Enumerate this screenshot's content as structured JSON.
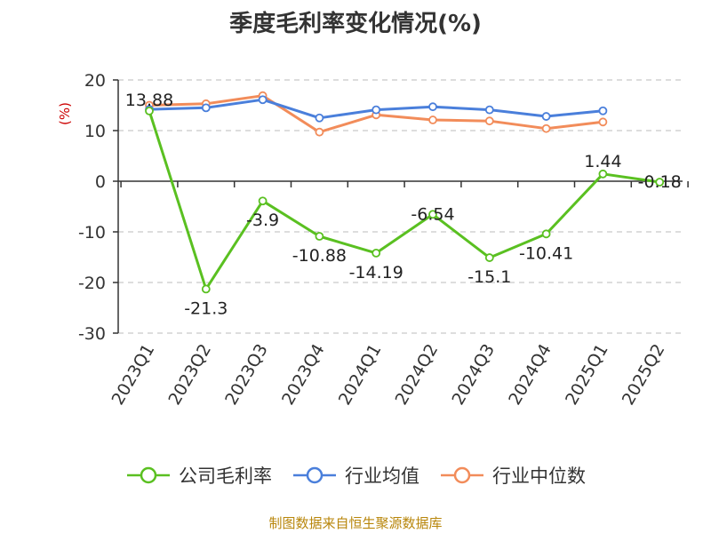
{
  "chart_data": {
    "type": "line",
    "title": "季度毛利率变化情况(%)",
    "ylabel": "(%)",
    "xlabel": "",
    "categories": [
      "2023Q1",
      "2023Q2",
      "2023Q3",
      "2023Q4",
      "2024Q1",
      "2024Q2",
      "2024Q3",
      "2024Q4",
      "2025Q1",
      "2025Q2"
    ],
    "ylim": [
      -30,
      20
    ],
    "yticks": [
      "20",
      "10",
      "0",
      "-10",
      "-20",
      "-30"
    ],
    "grid": true,
    "legend_position": "bottom",
    "series": [
      {
        "name": "公司毛利率",
        "color": "#5ac021",
        "values": [
          13.88,
          -21.3,
          -3.9,
          -10.88,
          -14.19,
          -6.54,
          -15.1,
          -10.41,
          1.44,
          -0.18
        ],
        "labels": [
          "13.88",
          "-21.3",
          "-3.9",
          "-10.88",
          "-14.19",
          "-6.54",
          "-15.1",
          "-10.41",
          "1.44",
          "-0.18"
        ]
      },
      {
        "name": "行业均值",
        "color": "#4a7fdb",
        "values": [
          14.2,
          14.5,
          16.1,
          12.5,
          14.1,
          14.7,
          14.1,
          12.8,
          13.9,
          null
        ]
      },
      {
        "name": "行业中位数",
        "color": "#f28c5a",
        "values": [
          15.0,
          15.3,
          16.9,
          9.7,
          13.1,
          12.1,
          11.9,
          10.4,
          11.7,
          null
        ]
      }
    ]
  },
  "source": "制图数据来自恒生聚源数据库"
}
